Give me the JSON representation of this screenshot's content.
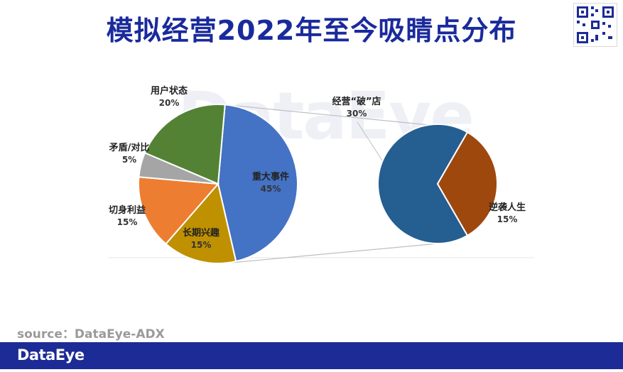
{
  "page": {
    "title": "模拟经营2022年至今吸睛点分布",
    "watermark": "DataEye",
    "source": "source：DataEye-ADX",
    "footer_brand": "DataEye"
  },
  "colors": {
    "title": "#1a2a9c",
    "footer": "#1c2b96",
    "connector": "#bfbfbf"
  },
  "icons": {
    "qr": "qr-code-icon"
  },
  "chart_data": [
    {
      "type": "pie",
      "slices": [
        {
          "label": "重大事件",
          "value": 45,
          "value_label": "45%",
          "color": "#4472c4"
        },
        {
          "label": "长期兴趣",
          "value": 15,
          "value_label": "15%",
          "color": "#bf9000"
        },
        {
          "label": "切身利益",
          "value": 15,
          "value_label": "15%",
          "color": "#ed7d31"
        },
        {
          "label": "矛盾/对比",
          "value": 5,
          "value_label": "5%",
          "color": "#a5a5a5"
        },
        {
          "label": "用户状态",
          "value": 20,
          "value_label": "20%",
          "color": "#548235"
        }
      ]
    },
    {
      "type": "pie",
      "slices": [
        {
          "label": "经营“破”店",
          "value": 30,
          "value_label": "30%",
          "color": "#255e91"
        },
        {
          "label": "逆袭人生",
          "value": 15,
          "value_label": "15%",
          "color": "#9e480e"
        }
      ]
    }
  ]
}
